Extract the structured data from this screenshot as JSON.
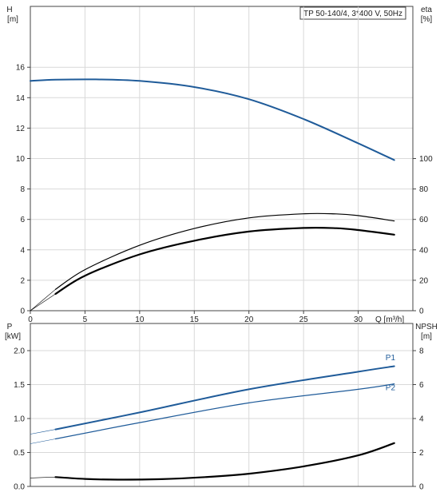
{
  "title": "TP 50-140/4, 3*400 V, 50Hz",
  "colors": {
    "blue": "#1f5b99",
    "black": "#000000",
    "grid": "#d9d9d9"
  },
  "chart_data": [
    {
      "type": "line",
      "axes": {
        "x": {
          "label": "Q [m³/h]",
          "range": [
            0,
            35
          ],
          "ticks": [
            0,
            5,
            10,
            15,
            20,
            25,
            30
          ]
        },
        "y_left": {
          "label_top": "H",
          "label_unit": "[m]",
          "range": [
            0,
            20
          ],
          "ticks": [
            0,
            2,
            4,
            6,
            8,
            10,
            12,
            14,
            16
          ]
        },
        "y_right": {
          "label_top": "eta",
          "label_unit": "[%]",
          "range": [
            0,
            200
          ],
          "ticks": [
            0,
            20,
            40,
            60,
            80,
            100
          ]
        }
      },
      "grid": true,
      "series": [
        {
          "color": "#1f5b99",
          "axis": "left",
          "width": 2,
          "x": [
            0,
            2.3,
            6,
            10,
            15,
            20,
            25,
            30,
            33.3
          ],
          "y": [
            15.1,
            15.18,
            15.2,
            15.1,
            14.7,
            13.9,
            12.6,
            11.0,
            9.9
          ]
        },
        {
          "color": "#000000",
          "axis": "right",
          "width": 1.2,
          "x": [
            2.3,
            5,
            10,
            15,
            20,
            25,
            28,
            30,
            33.3
          ],
          "y": [
            14,
            27,
            43,
            54,
            61,
            63.7,
            63.6,
            62.5,
            59
          ]
        },
        {
          "color": "#000000",
          "axis": "right",
          "width": 2.2,
          "x": [
            2.3,
            5,
            10,
            15,
            20,
            25,
            28,
            30,
            33.3
          ],
          "y": [
            11,
            23,
            37,
            46,
            52,
            54.4,
            54.2,
            53,
            50
          ]
        },
        {
          "color": "#000000",
          "axis": "right",
          "width": 0.6,
          "x": [
            0,
            2.3
          ],
          "y": [
            0,
            14
          ]
        },
        {
          "color": "#000000",
          "axis": "right",
          "width": 0.6,
          "x": [
            0,
            2.3
          ],
          "y": [
            0,
            11
          ]
        }
      ]
    },
    {
      "type": "line",
      "axes": {
        "x": {
          "label": "",
          "range": [
            0,
            35
          ],
          "ticks": []
        },
        "y_left": {
          "label_top": "P",
          "label_unit": "[kW]",
          "range": [
            0,
            2.4
          ],
          "ticks": [
            0.0,
            0.5,
            1.0,
            1.5,
            2.0
          ],
          "tick_labels": [
            "0.0",
            "0.5",
            "1.0",
            "1.5",
            "2.0"
          ]
        },
        "y_right": {
          "label_top": "NPSH",
          "label_unit": "[m]",
          "range": [
            0,
            9.6
          ],
          "ticks": [
            0,
            2,
            4,
            6,
            8
          ]
        }
      },
      "grid": true,
      "series": [
        {
          "name": "P1",
          "color": "#1f5b99",
          "axis": "left",
          "width": 2,
          "x": [
            2.3,
            10,
            20,
            30,
            33.3
          ],
          "y": [
            0.84,
            1.09,
            1.43,
            1.69,
            1.77
          ]
        },
        {
          "name": "P2",
          "color": "#1f5b99",
          "axis": "left",
          "width": 1.2,
          "x": [
            2.3,
            10,
            20,
            30,
            33.3
          ],
          "y": [
            0.7,
            0.94,
            1.23,
            1.43,
            1.51
          ]
        },
        {
          "color": "#1f5b99",
          "axis": "left",
          "width": 0.6,
          "x": [
            0,
            2.3
          ],
          "y": [
            0.77,
            0.84
          ]
        },
        {
          "color": "#1f5b99",
          "axis": "left",
          "width": 0.6,
          "x": [
            0,
            2.3
          ],
          "y": [
            0.63,
            0.7
          ]
        },
        {
          "color": "#000000",
          "axis": "right",
          "width": 2.2,
          "x": [
            2.3,
            5,
            8,
            12,
            16,
            20,
            25,
            30,
            33.3
          ],
          "y": [
            0.55,
            0.44,
            0.4,
            0.43,
            0.55,
            0.75,
            1.18,
            1.83,
            2.55
          ]
        },
        {
          "color": "#000000",
          "axis": "right",
          "width": 0.6,
          "x": [
            0,
            2.3
          ],
          "y": [
            0.5,
            0.55
          ]
        }
      ],
      "annotations": [
        {
          "text": "P1",
          "x": 32.5,
          "y": 1.86,
          "axis": "left",
          "color": "#1f5b99"
        },
        {
          "text": "P2",
          "x": 32.5,
          "y": 1.42,
          "axis": "left",
          "color": "#1f5b99"
        }
      ]
    }
  ]
}
